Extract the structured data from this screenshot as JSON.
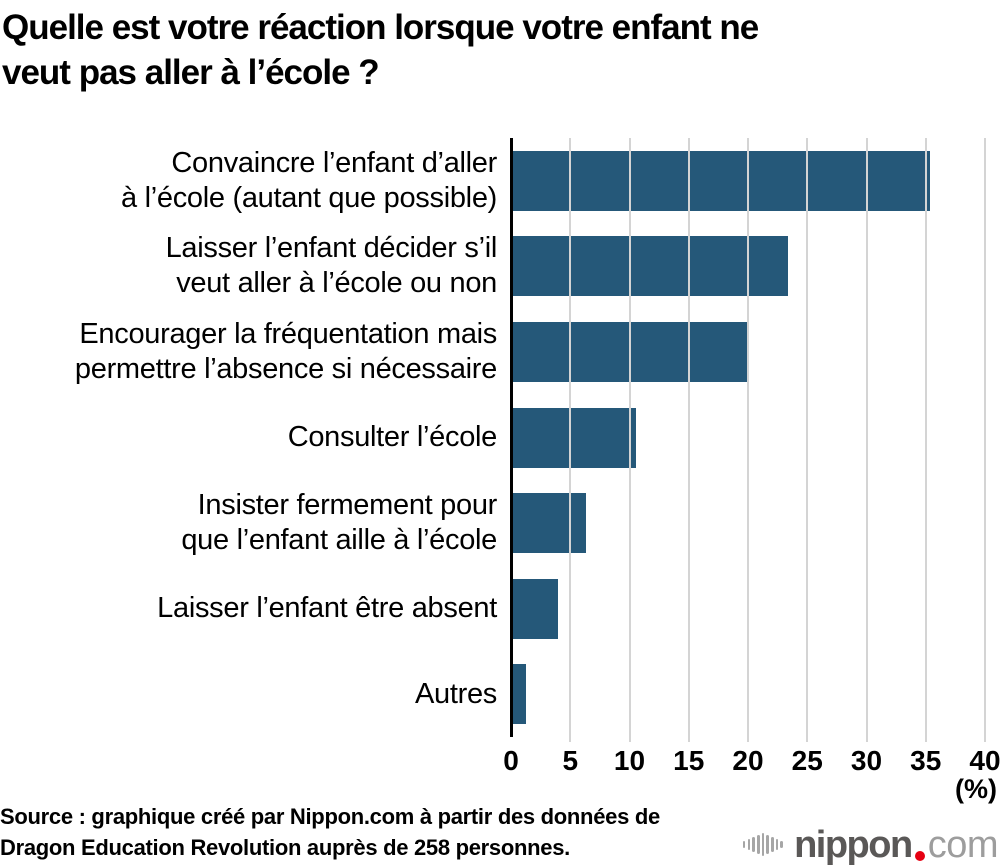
{
  "title": "Quelle est votre réaction lorsque votre enfant ne\nveut pas aller à l’école ?",
  "chart_data": {
    "type": "bar",
    "orientation": "horizontal",
    "title": "Quelle est votre réaction lorsque votre enfant ne veut pas aller à l’école ?",
    "categories": [
      "Convaincre l’enfant d’aller\nà l’école (autant que possible)",
      "Laisser l’enfant décider s’il\nveut aller à l’école ou non",
      "Encourager la fréquentation mais\npermettre l’absence si nécessaire",
      "Consulter l’école",
      "Insister fermement pour\nque l’enfant aille à l’école",
      "Laisser l’enfant être absent",
      "Autres"
    ],
    "values": [
      35.3,
      23.3,
      19.8,
      10.5,
      6.2,
      3.9,
      1.2
    ],
    "xlim": [
      0,
      40
    ],
    "xticks": [
      "0",
      "5",
      "10",
      "15",
      "20",
      "25",
      "30",
      "35",
      "40"
    ],
    "unit_label": "(%)",
    "grid": true,
    "bar_color": "#255879",
    "gridline_color": "#d4d4d4",
    "axis_color": "#000000",
    "legend": "none"
  },
  "source": {
    "text": "Source : graphique créé par Nippon.com à partir des données de\nDragon Education Revolution auprès de 258 personnes."
  },
  "logo": {
    "name": "nippon.com",
    "word": "nippon",
    "suffix": "com",
    "dot_color": "#e60012",
    "word_color": "#5a5857",
    "suffix_color": "#9d9d9d",
    "icon": "sound-wave-bars-icon"
  }
}
